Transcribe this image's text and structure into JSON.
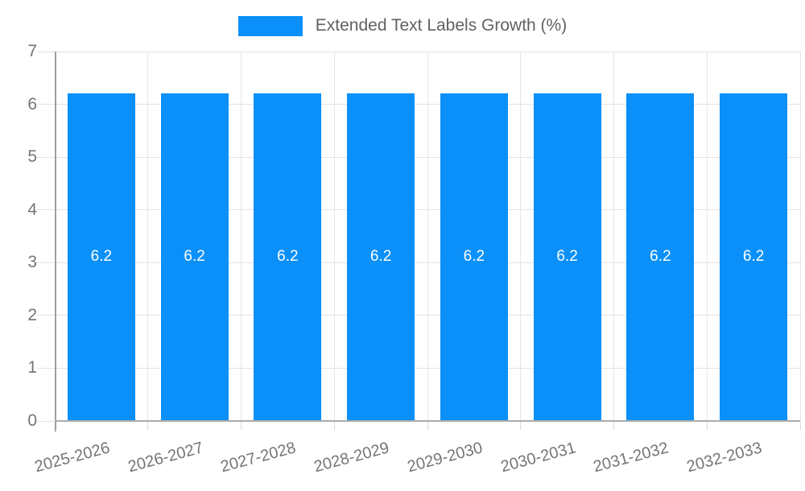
{
  "legend": {
    "label": "Extended Text Labels Growth (%)"
  },
  "chart_data": {
    "type": "bar",
    "title": "Extended Text Labels Growth (%)",
    "categories": [
      "2025-2026",
      "2026-2027",
      "2027-2028",
      "2028-2029",
      "2029-2030",
      "2030-2031",
      "2031-2032",
      "2032-2033"
    ],
    "values": [
      6.2,
      6.2,
      6.2,
      6.2,
      6.2,
      6.2,
      6.2,
      6.2
    ],
    "bar_labels": [
      "6.2",
      "6.2",
      "6.2",
      "6.2",
      "6.2",
      "6.2",
      "6.2",
      "6.2"
    ],
    "xlabel": "",
    "ylabel": "",
    "yticks": [
      "0",
      "1",
      "2",
      "3",
      "4",
      "5",
      "6",
      "7"
    ],
    "ylim": [
      0,
      7
    ],
    "grid": true,
    "legend_position": "top-center",
    "x_label_rotation_deg": -15,
    "colors": {
      "bar": "#0A90F8",
      "bar_label_text": "#FFFFFF",
      "axis_line": "#9E9E9E",
      "grid_line": "#E3E3E3",
      "tick_text": "#757575",
      "legend_text": "#616161",
      "background": "#FFFFFF"
    }
  }
}
